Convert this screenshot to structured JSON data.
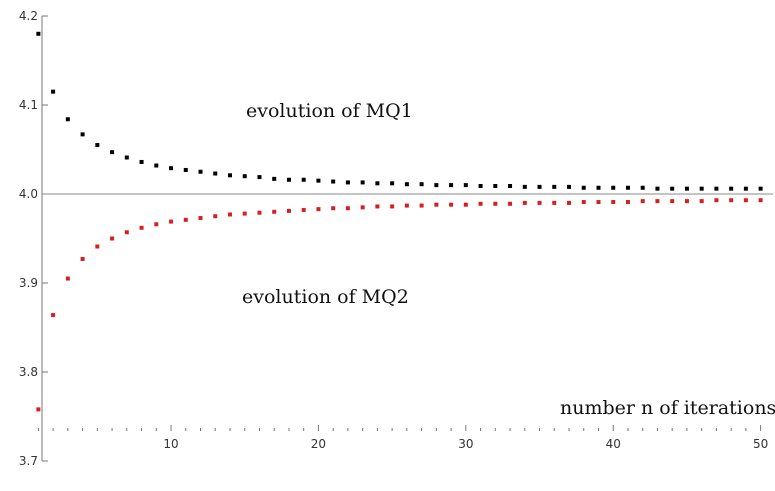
{
  "chart_data": {
    "type": "scatter",
    "title": "",
    "xlabel": "",
    "ylabel": "",
    "xlim": [
      0.5,
      50.5
    ],
    "ylim": [
      3.7,
      4.2
    ],
    "grid": false,
    "reference_line_y": 4.0,
    "x_ticks": [
      10,
      20,
      30,
      40,
      50
    ],
    "y_ticks": [
      3.7,
      3.8,
      3.9,
      4.0,
      4.1,
      4.2
    ],
    "x_tick_labels": [
      "10",
      "20",
      "30",
      "40",
      "50"
    ],
    "y_tick_labels": [
      "3.7",
      "3.8",
      "3.9",
      "4.0",
      "4.1",
      "4.2"
    ],
    "annotations": {
      "mq1": "evolution of MQ1",
      "mq2": "evolution of MQ2",
      "xaxis": "number n of iterations"
    },
    "series": [
      {
        "color": "#000000",
        "x": [
          1,
          2,
          3,
          4,
          5,
          6,
          7,
          8,
          9,
          10,
          11,
          12,
          13,
          14,
          15,
          16,
          17,
          18,
          19,
          20,
          21,
          22,
          23,
          24,
          25,
          26,
          27,
          28,
          29,
          30,
          31,
          32,
          33,
          34,
          35,
          36,
          37,
          38,
          39,
          40,
          41,
          42,
          43,
          44,
          45,
          46,
          47,
          48,
          49,
          50
        ],
        "y": [
          4.18,
          4.115,
          4.084,
          4.067,
          4.055,
          4.047,
          4.041,
          4.036,
          4.032,
          4.029,
          4.027,
          4.025,
          4.023,
          4.021,
          4.02,
          4.019,
          4.017,
          4.016,
          4.016,
          4.015,
          4.014,
          4.013,
          4.013,
          4.012,
          4.012,
          4.011,
          4.011,
          4.01,
          4.01,
          4.01,
          4.009,
          4.009,
          4.009,
          4.008,
          4.008,
          4.008,
          4.008,
          4.007,
          4.007,
          4.007,
          4.007,
          4.007,
          4.006,
          4.006,
          4.006,
          4.006,
          4.006,
          4.006,
          4.006,
          4.006
        ]
      },
      {
        "color": "#d62020",
        "x": [
          1,
          2,
          3,
          4,
          5,
          6,
          7,
          8,
          9,
          10,
          11,
          12,
          13,
          14,
          15,
          16,
          17,
          18,
          19,
          20,
          21,
          22,
          23,
          24,
          25,
          26,
          27,
          28,
          29,
          30,
          31,
          32,
          33,
          34,
          35,
          36,
          37,
          38,
          39,
          40,
          41,
          42,
          43,
          44,
          45,
          46,
          47,
          48,
          49,
          50
        ],
        "y": [
          3.758,
          3.864,
          3.905,
          3.927,
          3.941,
          3.95,
          3.957,
          3.962,
          3.966,
          3.969,
          3.971,
          3.973,
          3.975,
          3.977,
          3.978,
          3.979,
          3.98,
          3.981,
          3.982,
          3.983,
          3.984,
          3.984,
          3.985,
          3.986,
          3.986,
          3.987,
          3.987,
          3.988,
          3.988,
          3.988,
          3.989,
          3.989,
          3.989,
          3.99,
          3.99,
          3.99,
          3.99,
          3.991,
          3.991,
          3.991,
          3.991,
          3.992,
          3.992,
          3.992,
          3.992,
          3.992,
          3.993,
          3.993,
          3.993,
          3.993
        ]
      }
    ]
  }
}
